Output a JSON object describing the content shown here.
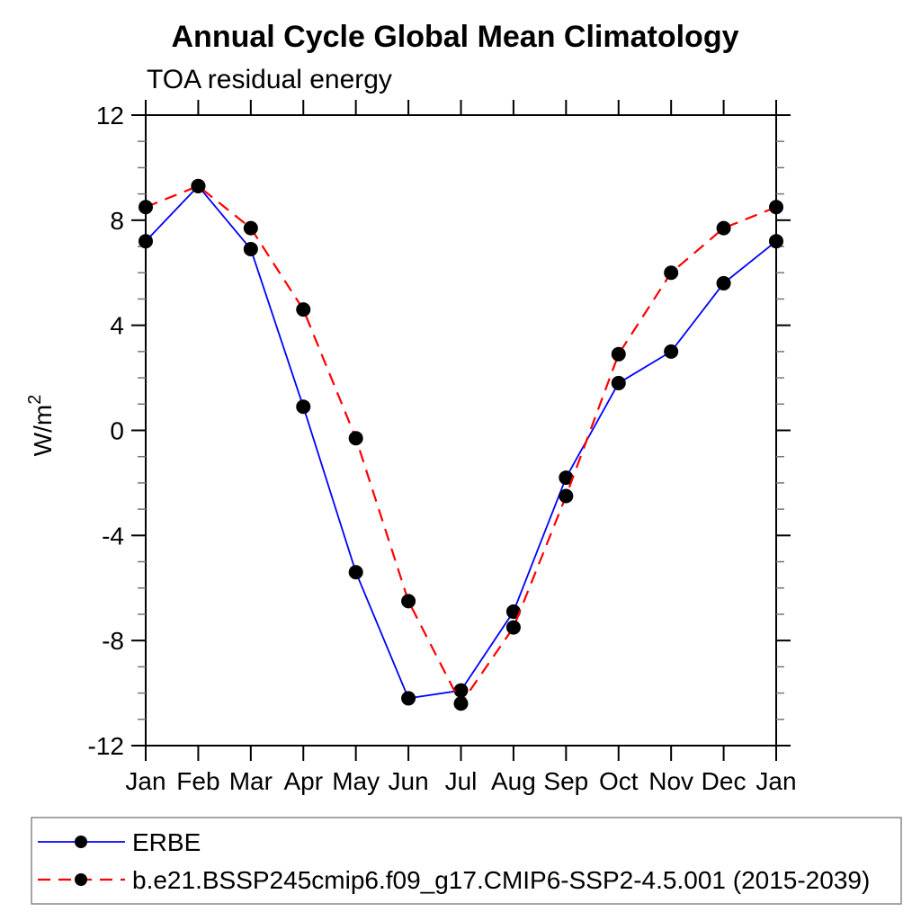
{
  "chart_data": {
    "type": "line",
    "title": "Annual Cycle Global Mean Climatology",
    "subtitle": "TOA residual energy",
    "xlabel": "",
    "ylabel": "W/m2",
    "ylabel_parts": {
      "base": "W/m",
      "sup": "2"
    },
    "categories": [
      "Jan",
      "Feb",
      "Mar",
      "Apr",
      "May",
      "Jun",
      "Jul",
      "Aug",
      "Sep",
      "Oct",
      "Nov",
      "Dec",
      "Jan"
    ],
    "ylim": [
      -12,
      12
    ],
    "ytick_major": [
      -12,
      -8,
      -4,
      0,
      4,
      8,
      12
    ],
    "ytick_minor_step": 1,
    "grid": false,
    "legend_position": "bottom-left",
    "series": [
      {
        "name": "ERBE",
        "color": "#0000ff",
        "line_style": "solid",
        "marker": "filled-circle",
        "marker_color": "#000000",
        "values": [
          7.2,
          9.3,
          6.9,
          0.9,
          -5.4,
          -10.2,
          -9.9,
          -6.9,
          -1.8,
          1.8,
          3.0,
          5.6,
          7.2
        ]
      },
      {
        "name": "b.e21.BSSP245cmip6.f09_g17.CMIP6-SSP2-4.5.001 (2015-2039)",
        "color": "#ff0000",
        "line_style": "dashed",
        "marker": "filled-circle",
        "marker_color": "#000000",
        "values": [
          8.5,
          9.3,
          7.7,
          4.6,
          -0.3,
          -6.5,
          -10.4,
          -7.5,
          -2.5,
          2.9,
          6.0,
          7.7,
          8.5
        ]
      }
    ]
  },
  "legend": {
    "items": [
      {
        "label": "ERBE"
      },
      {
        "label": "b.e21.BSSP245cmip6.f09_g17.CMIP6-SSP2-4.5.001 (2015-2039)"
      }
    ]
  },
  "colors": {
    "axis": "#000000",
    "minor_tick": "#777777",
    "legend_border": "#888888",
    "text": "#000000"
  }
}
